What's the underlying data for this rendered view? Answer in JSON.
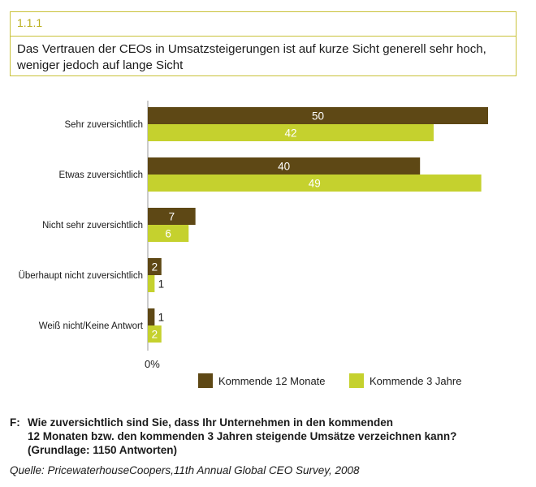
{
  "header": {
    "section_number": "1.1.1",
    "title": "Das Vertrauen der CEOs in Umsatzsteigerungen ist auf kurze Sicht generell sehr hoch, weniger jedoch auf lange Sicht"
  },
  "chart_data": {
    "type": "bar",
    "orientation": "horizontal",
    "categories": [
      "Sehr zuversichtlich",
      "Etwas zuversichtlich",
      "Nicht sehr zuversichtlich",
      "Überhaupt nicht zuversichtlich",
      "Weiß nicht/Keine Antwort"
    ],
    "series": [
      {
        "name": "Kommende 12 Monate",
        "values": [
          50,
          40,
          7,
          2,
          1
        ],
        "color": "#5e4815"
      },
      {
        "name": "Kommende 3 Jahre",
        "values": [
          42,
          49,
          6,
          1,
          2
        ],
        "color": "#c5d12e"
      }
    ],
    "xlim": [
      0,
      50
    ],
    "axis_label": "0%",
    "grid": false,
    "legend_placement": "bottom-right"
  },
  "footnote": {
    "prefix": "F:",
    "lines": [
      "Wie zuversichtlich sind Sie, dass Ihr Unternehmen in den kommenden",
      "12 Monaten bzw. den kommenden 3 Jahren steigende Umsätze verzeichnen kann?",
      "(Grundlage: 1150 Antworten)"
    ]
  },
  "source": "Quelle: PricewaterhouseCoopers,11th Annual Global CEO Survey, 2008"
}
